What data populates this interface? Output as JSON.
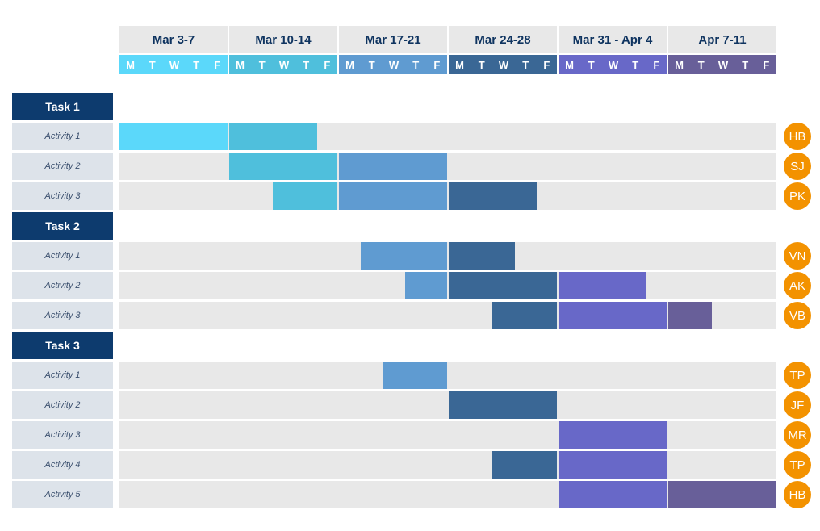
{
  "chart_data": {
    "type": "gantt",
    "weeks": [
      {
        "label": "Mar 3-7",
        "color": "#5bd8fa"
      },
      {
        "label": "Mar 10-14",
        "color": "#4fbfdc"
      },
      {
        "label": "Mar 17-21",
        "color": "#5f9bd1"
      },
      {
        "label": "Mar 24-28",
        "color": "#3a6795"
      },
      {
        "label": "Mar 31 - Apr 4",
        "color": "#6868c8"
      },
      {
        "label": "Apr 7-11",
        "color": "#685f99"
      }
    ],
    "days": [
      "M",
      "T",
      "W",
      "T",
      "F"
    ],
    "tasks": [
      {
        "label": "Task 1",
        "activities": [
          {
            "label": "Activity 1",
            "assignee": "HB",
            "start": 0,
            "end": 9
          },
          {
            "label": "Activity 2",
            "assignee": "SJ",
            "start": 5,
            "end": 15
          },
          {
            "label": "Activity 3",
            "assignee": "PK",
            "start": 7,
            "end": 19
          }
        ]
      },
      {
        "label": "Task 2",
        "activities": [
          {
            "label": "Activity 1",
            "assignee": "VN",
            "start": 11,
            "end": 18
          },
          {
            "label": "Activity 2",
            "assignee": "AK",
            "start": 13,
            "end": 24
          },
          {
            "label": "Activity 3",
            "assignee": "VB",
            "start": 17,
            "end": 27
          }
        ]
      },
      {
        "label": "Task 3",
        "activities": [
          {
            "label": "Activity 1",
            "assignee": "TP",
            "start": 12,
            "end": 15
          },
          {
            "label": "Activity 2",
            "assignee": "JF",
            "start": 15,
            "end": 20
          },
          {
            "label": "Activity 3",
            "assignee": "MR",
            "start": 20,
            "end": 25
          },
          {
            "label": "Activity 4",
            "assignee": "TP",
            "start": 17,
            "end": 25
          },
          {
            "label": "Activity 5",
            "assignee": "HB",
            "start": 20,
            "end": 30
          }
        ]
      }
    ],
    "assignee_color": "#f39200"
  }
}
